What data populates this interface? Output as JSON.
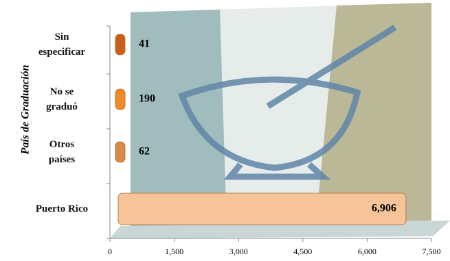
{
  "chart_data": {
    "type": "bar",
    "orientation": "horizontal",
    "y_axis_label": "País de Graduación",
    "categories": [
      "Sin\nespecificar",
      "No se\ngraduó",
      "Otros\npaíses",
      "Puerto Rico"
    ],
    "values": [
      41,
      190,
      62,
      6906
    ],
    "value_labels": [
      "41",
      "190",
      "62",
      "6,906"
    ],
    "colors": [
      "#c8601a",
      "#f08a2a",
      "#d9894a",
      "#f7c49a"
    ],
    "xlim": [
      0,
      7500
    ],
    "xticks": [
      0,
      {
        "value": 1500,
        "label": "1,500"
      },
      {
        "value": 3000,
        "label": "3,000"
      },
      {
        "value": 4500,
        "label": "4,500"
      },
      {
        "value": 6000,
        "label": "6,000"
      },
      {
        "value": 7500,
        "label": "7,500"
      }
    ]
  }
}
